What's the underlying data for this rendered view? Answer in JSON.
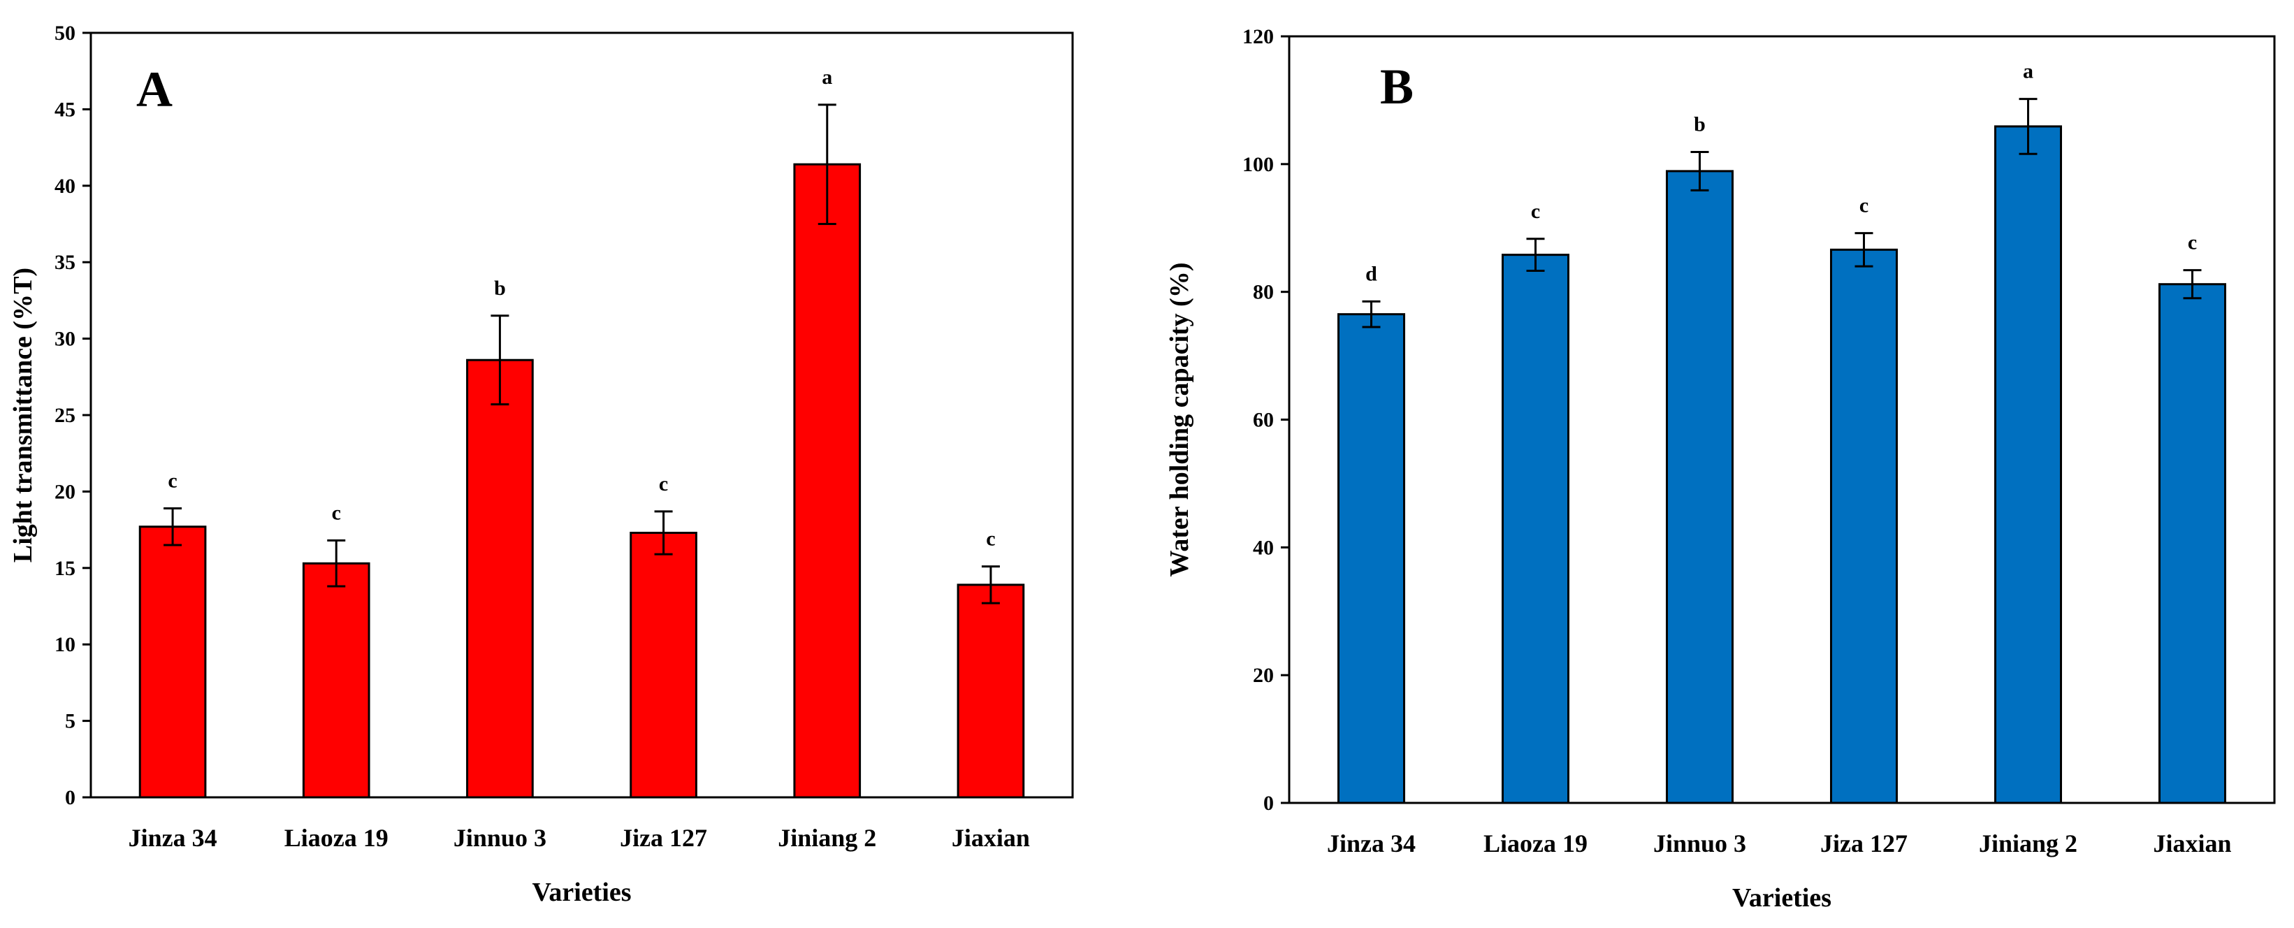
{
  "chart_data": [
    {
      "type": "bar",
      "panel_label": "A",
      "categories": [
        "Jinza 34",
        "Liaoza 19",
        "Jinnuo 3",
        "Jiza 127",
        "Jiniang 2",
        "Jiaxian"
      ],
      "values": [
        17.7,
        15.3,
        28.6,
        17.3,
        41.4,
        13.9
      ],
      "errors": [
        1.2,
        1.5,
        2.9,
        1.4,
        3.9,
        1.2
      ],
      "significance": [
        "c",
        "c",
        "b",
        "c",
        "a",
        "c"
      ],
      "title": "",
      "xlabel": "Varieties",
      "ylabel": "Light transmittance (%T)",
      "ylim": [
        0,
        50
      ],
      "yticks": [
        0,
        5,
        10,
        15,
        20,
        25,
        30,
        35,
        40,
        45,
        50
      ],
      "bar_color": "#ff0000",
      "grid": false
    },
    {
      "type": "bar",
      "panel_label": "B",
      "categories": [
        "Jinza 34",
        "Liaoza 19",
        "Jinnuo 3",
        "Jiza 127",
        "Jiniang 2",
        "Jiaxian"
      ],
      "values": [
        76.5,
        85.8,
        98.9,
        86.6,
        105.9,
        81.2
      ],
      "errors": [
        2.0,
        2.5,
        3.0,
        2.6,
        4.3,
        2.2
      ],
      "significance": [
        "d",
        "c",
        "b",
        "c",
        "a",
        "c"
      ],
      "title": "",
      "xlabel": "Varieties",
      "ylabel": "Water holding capacity (%)",
      "ylim": [
        0,
        120
      ],
      "yticks": [
        0,
        20,
        40,
        60,
        80,
        100,
        120
      ],
      "bar_color": "#0070c0",
      "grid": false
    }
  ]
}
